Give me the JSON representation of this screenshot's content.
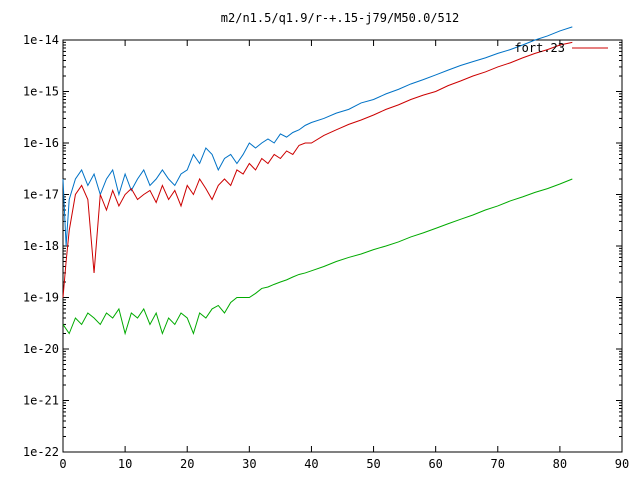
{
  "chart_data": {
    "type": "line",
    "title": "m2/n1.5/q1.9/r-+.15-j79/M50.0/512",
    "xlabel": "",
    "ylabel": "",
    "xlim": [
      0,
      90
    ],
    "ylim": [
      1e-22,
      1e-14
    ],
    "yscale": "log",
    "grid": false,
    "legend_position": "top-right",
    "x_ticks": [
      "0",
      "10",
      "20",
      "30",
      "40",
      "50",
      "60",
      "70",
      "80",
      "90"
    ],
    "y_ticks": [
      "1e-22",
      "1e-21",
      "1e-20",
      "1e-19",
      "1e-18",
      "1e-17",
      "1e-16",
      "1e-15",
      "1e-14"
    ],
    "x_tick_values": [
      0,
      10,
      20,
      30,
      40,
      50,
      60,
      70,
      80,
      90
    ],
    "y_tick_exponents": [
      -22,
      -21,
      -20,
      -19,
      -18,
      -17,
      -16,
      -15,
      -14
    ],
    "series": [
      {
        "color": "#0072c6",
        "x": [
          0,
          0.5,
          1,
          2,
          3,
          4,
          5,
          6,
          7,
          8,
          9,
          10,
          11,
          12,
          13,
          14,
          15,
          16,
          17,
          18,
          19,
          20,
          21,
          22,
          23,
          24,
          25,
          26,
          27,
          28,
          29,
          30,
          31,
          32,
          33,
          34,
          35,
          36,
          37,
          38,
          39,
          40,
          42,
          44,
          46,
          48,
          50,
          52,
          54,
          56,
          58,
          60,
          62,
          64,
          66,
          68,
          70,
          72,
          74,
          76,
          78,
          80,
          82
        ],
        "y": [
          2e-17,
          1e-18,
          8e-18,
          2e-17,
          3e-17,
          1.5e-17,
          2.5e-17,
          1e-17,
          2e-17,
          3e-17,
          1e-17,
          2.5e-17,
          1.2e-17,
          2e-17,
          3e-17,
          1.5e-17,
          2e-17,
          3e-17,
          2e-17,
          1.5e-17,
          2.5e-17,
          3e-17,
          6e-17,
          4e-17,
          8e-17,
          6e-17,
          3e-17,
          5e-17,
          6e-17,
          4e-17,
          6e-17,
          1e-16,
          8e-17,
          1e-16,
          1.2e-16,
          1e-16,
          1.5e-16,
          1.3e-16,
          1.6e-16,
          1.8e-16,
          2.2e-16,
          2.5e-16,
          3e-16,
          3.8e-16,
          4.5e-16,
          6e-16,
          7e-16,
          9e-16,
          1.1e-15,
          1.4e-15,
          1.7e-15,
          2.1e-15,
          2.6e-15,
          3.2e-15,
          3.8e-15,
          4.5e-15,
          5.5e-15,
          6.5e-15,
          8e-15,
          1e-14,
          1.2e-14,
          1.5e-14,
          1.8e-14
        ]
      },
      {
        "name": "fort.23",
        "color": "#cc0000",
        "x": [
          0,
          0.5,
          1,
          2,
          3,
          4,
          5,
          6,
          7,
          8,
          9,
          10,
          11,
          12,
          13,
          14,
          15,
          16,
          17,
          18,
          19,
          20,
          21,
          22,
          23,
          24,
          25,
          26,
          27,
          28,
          29,
          30,
          31,
          32,
          33,
          34,
          35,
          36,
          37,
          38,
          39,
          40,
          42,
          44,
          46,
          48,
          50,
          52,
          54,
          56,
          58,
          60,
          62,
          64,
          66,
          68,
          70,
          72,
          74,
          76,
          78,
          80,
          82
        ],
        "y": [
          1e-19,
          5e-19,
          2e-18,
          1e-17,
          1.5e-17,
          8e-18,
          3e-19,
          1e-17,
          5e-18,
          1.2e-17,
          6e-18,
          1e-17,
          1.3e-17,
          8e-18,
          1e-17,
          1.2e-17,
          7e-18,
          1.5e-17,
          8e-18,
          1.2e-17,
          6e-18,
          1.5e-17,
          1e-17,
          2e-17,
          1.3e-17,
          8e-18,
          1.5e-17,
          2e-17,
          1.5e-17,
          3e-17,
          2.5e-17,
          4e-17,
          3e-17,
          5e-17,
          4e-17,
          6e-17,
          5e-17,
          7e-17,
          6e-17,
          9e-17,
          1e-16,
          1e-16,
          1.4e-16,
          1.8e-16,
          2.3e-16,
          2.8e-16,
          3.5e-16,
          4.5e-16,
          5.5e-16,
          7e-16,
          8.5e-16,
          1e-15,
          1.3e-15,
          1.6e-15,
          2e-15,
          2.4e-15,
          3e-15,
          3.6e-15,
          4.5e-15,
          5.5e-15,
          6.5e-15,
          8e-15,
          9e-15
        ]
      },
      {
        "color": "#00aa00",
        "x": [
          0,
          1,
          2,
          3,
          4,
          5,
          6,
          7,
          8,
          9,
          10,
          11,
          12,
          13,
          14,
          15,
          16,
          17,
          18,
          19,
          20,
          21,
          22,
          23,
          24,
          25,
          26,
          27,
          28,
          29,
          30,
          31,
          32,
          33,
          34,
          35,
          36,
          37,
          38,
          39,
          40,
          42,
          44,
          46,
          48,
          50,
          52,
          54,
          56,
          58,
          60,
          62,
          64,
          66,
          68,
          70,
          72,
          74,
          76,
          78,
          80,
          82
        ],
        "y": [
          3e-20,
          2e-20,
          4e-20,
          3e-20,
          5e-20,
          4e-20,
          3e-20,
          5e-20,
          4e-20,
          6e-20,
          2e-20,
          5e-20,
          4e-20,
          6e-20,
          3e-20,
          5e-20,
          2e-20,
          4e-20,
          3e-20,
          5e-20,
          4e-20,
          2e-20,
          5e-20,
          4e-20,
          6e-20,
          7e-20,
          5e-20,
          8e-20,
          1e-19,
          1e-19,
          1e-19,
          1.2e-19,
          1.5e-19,
          1.6e-19,
          1.8e-19,
          2e-19,
          2.2e-19,
          2.5e-19,
          2.8e-19,
          3e-19,
          3.3e-19,
          4e-19,
          5e-19,
          6e-19,
          7e-19,
          8.5e-19,
          1e-18,
          1.2e-18,
          1.5e-18,
          1.8e-18,
          2.2e-18,
          2.7e-18,
          3.3e-18,
          4e-18,
          5e-18,
          6e-18,
          7.5e-18,
          9e-18,
          1.1e-17,
          1.3e-17,
          1.6e-17,
          2e-17
        ]
      }
    ]
  }
}
